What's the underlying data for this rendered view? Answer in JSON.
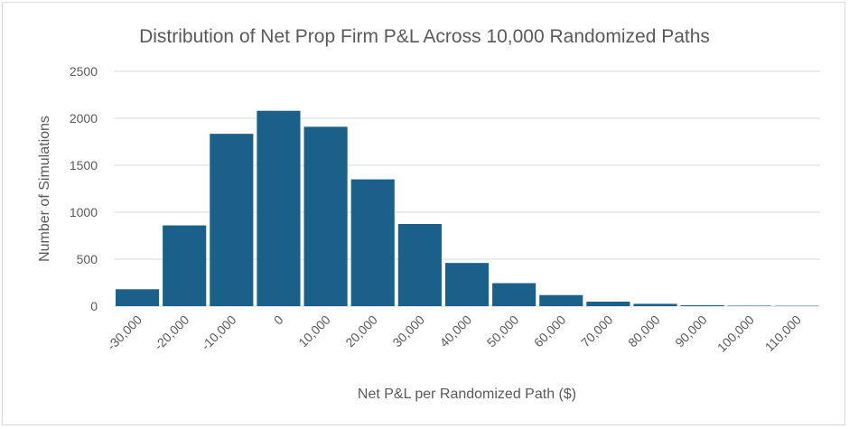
{
  "chart_data": {
    "type": "bar",
    "title": "Distribution of Net Prop Firm P&L Across 10,000 Randomized Paths",
    "xlabel": "Net P&L per Randomized Path ($)",
    "ylabel": "Number of Simulations",
    "categories": [
      "-30,000",
      "-20,000",
      "-10,000",
      "0",
      "10,000",
      "20,000",
      "30,000",
      "40,000",
      "50,000",
      "60,000",
      "70,000",
      "80,000",
      "90,000",
      "100,000",
      "110,000"
    ],
    "values": [
      180,
      860,
      1835,
      2080,
      1910,
      1350,
      875,
      460,
      245,
      118,
      48,
      25,
      10,
      5,
      4
    ],
    "ylim": [
      0,
      2500
    ],
    "yticks": [
      0,
      500,
      1000,
      1500,
      2000,
      2500
    ],
    "grid": true,
    "legend": "none",
    "bar_color": "#1a6089"
  }
}
